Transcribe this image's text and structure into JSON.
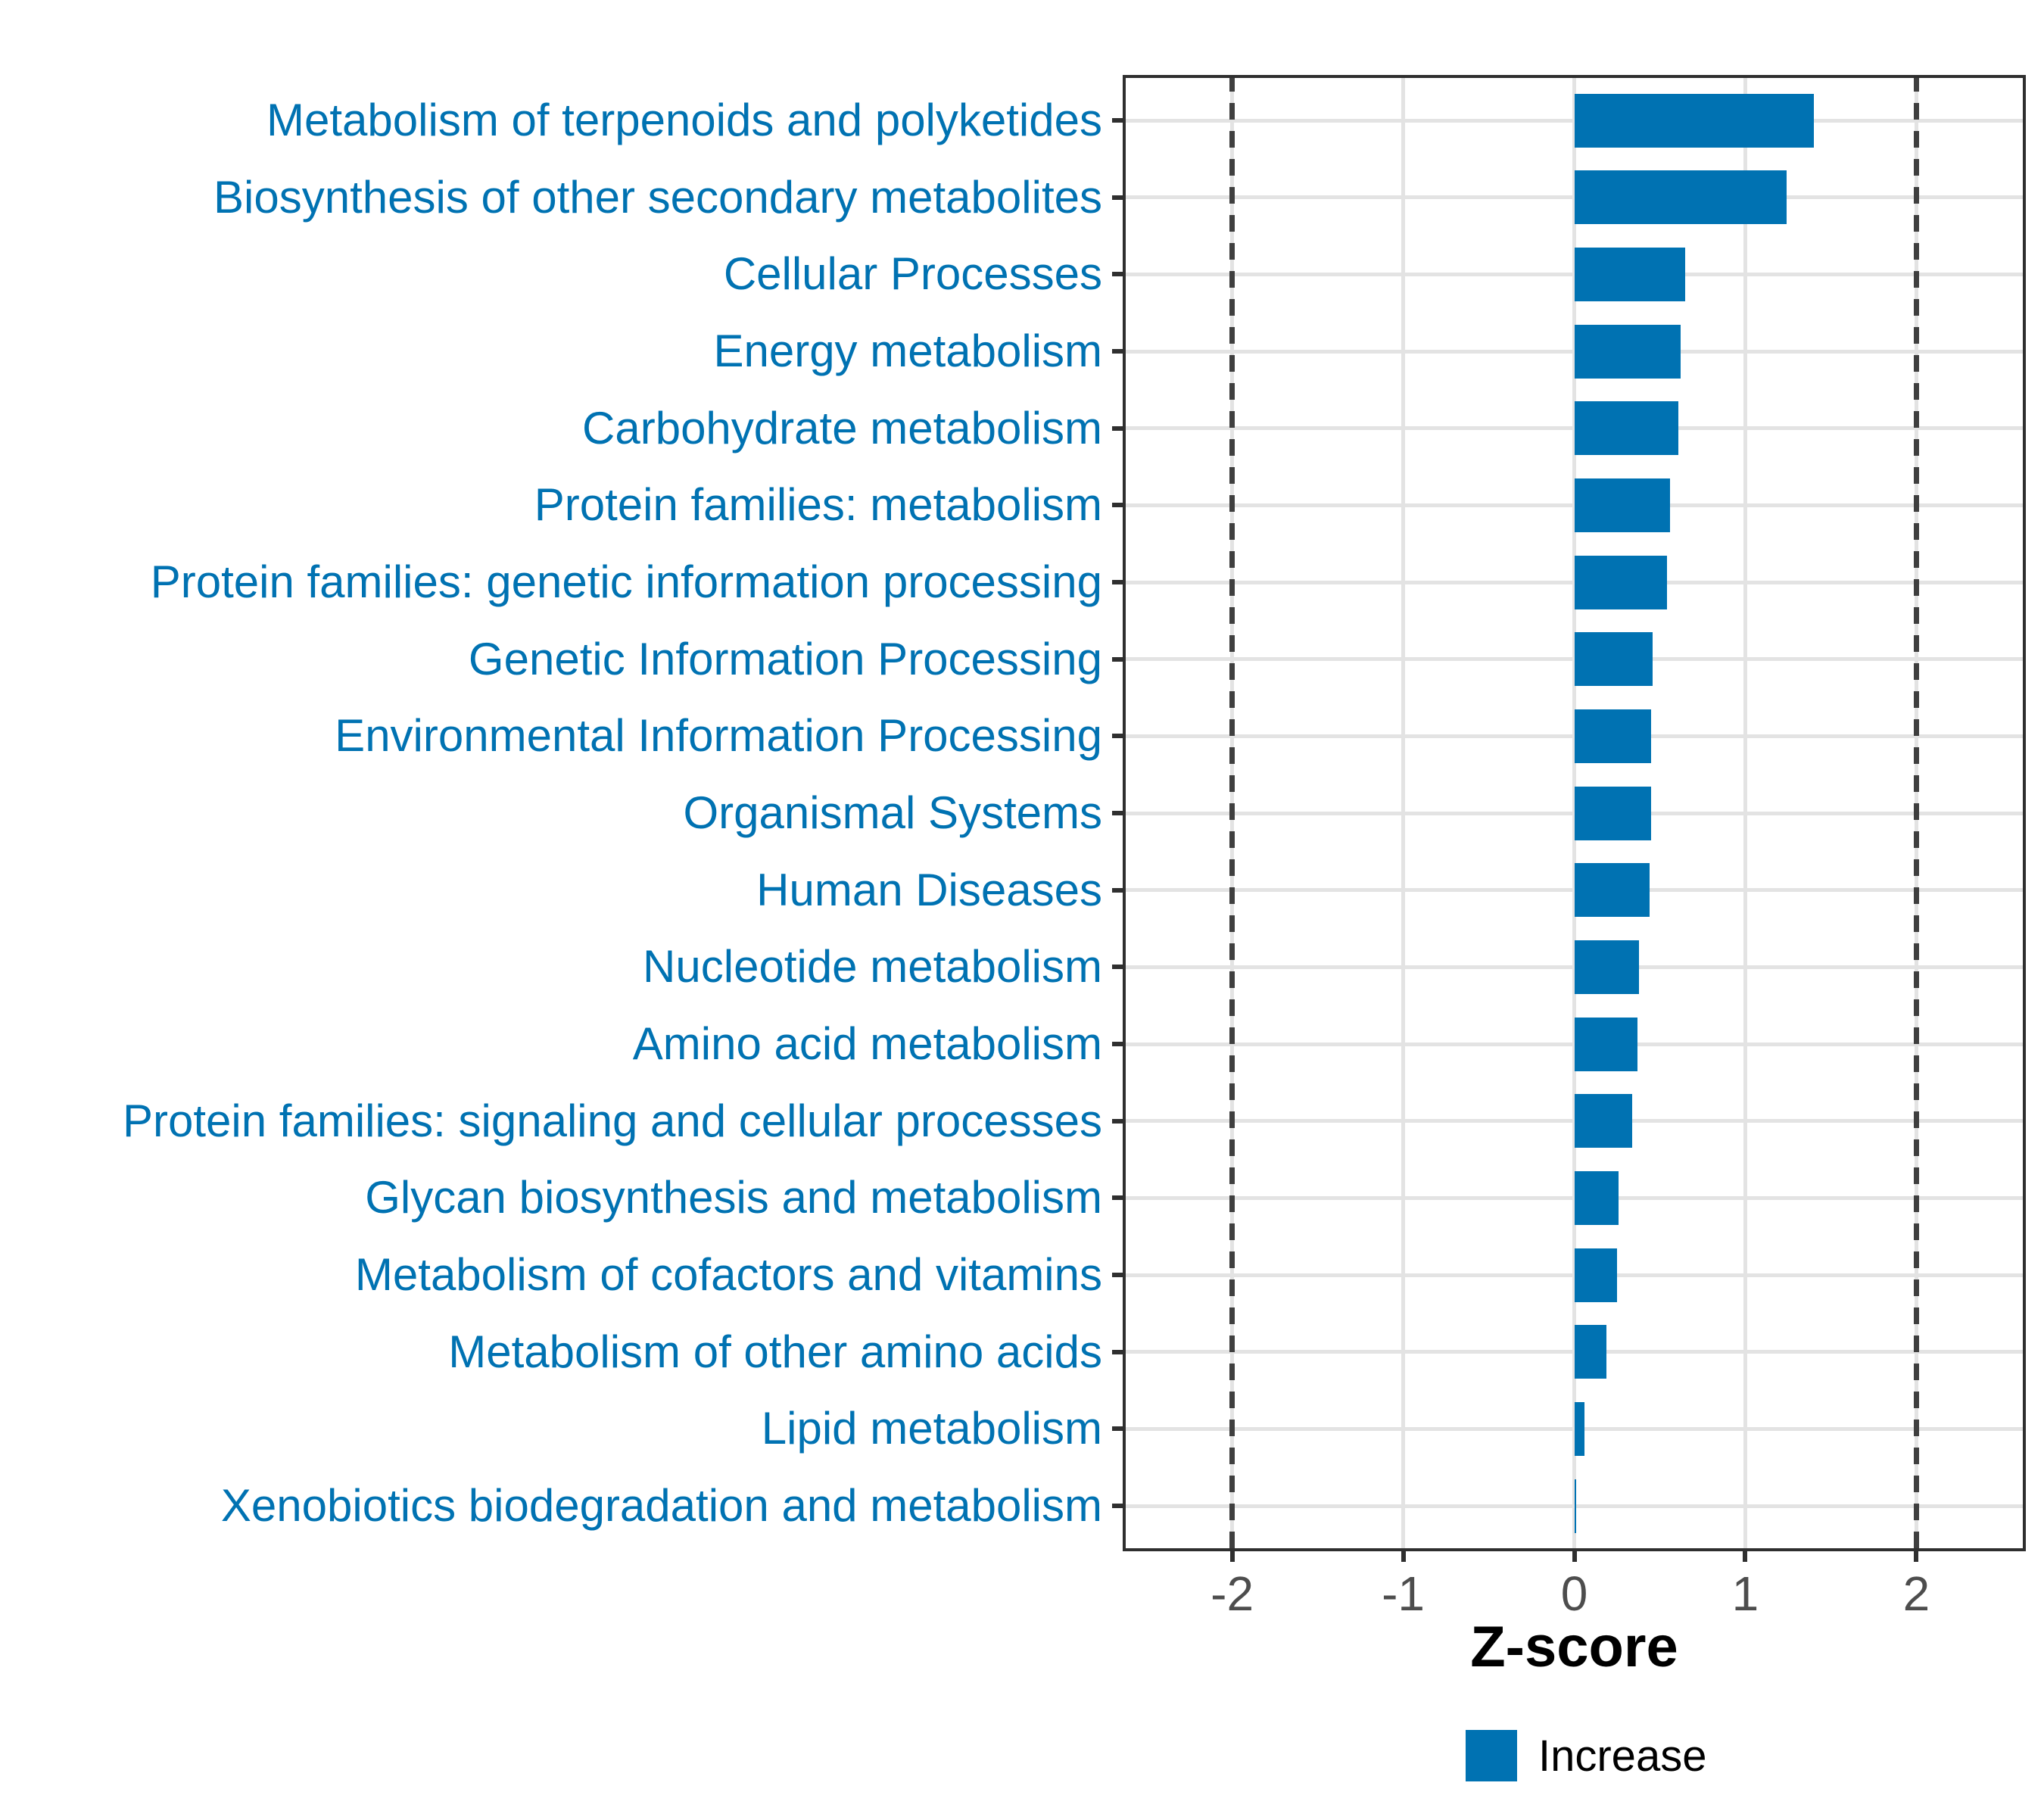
{
  "chart_data": {
    "type": "bar",
    "orientation": "horizontal",
    "title": "",
    "xlabel": "Z-score",
    "ylabel": "",
    "xlim": [
      -2.64,
      2.64
    ],
    "x_ticks": [
      -2,
      -1,
      0,
      1,
      2
    ],
    "x_tick_labels": [
      "-2",
      "-1",
      "0",
      "1",
      "2"
    ],
    "dashed_reference_lines": [
      -2,
      2
    ],
    "grid": "major",
    "legend_position": "bottom",
    "categories": [
      "Metabolism of terpenoids and polyketides",
      "Biosynthesis of other secondary metabolites",
      "Cellular Processes",
      "Energy metabolism",
      "Carbohydrate metabolism",
      "Protein families: metabolism",
      "Protein families: genetic information processing",
      "Genetic Information Processing",
      "Environmental Information Processing",
      "Organismal Systems",
      "Human Diseases",
      "Nucleotide metabolism",
      "Amino acid metabolism",
      "Protein families: signaling and cellular processes",
      "Glycan biosynthesis and metabolism",
      "Metabolism of cofactors and vitamins",
      "Metabolism of other amino acids",
      "Lipid metabolism",
      "Xenobiotics biodegradation and metabolism"
    ],
    "series": [
      {
        "name": "Increase",
        "color": "#0072B2",
        "values": [
          1.4,
          1.24,
          0.65,
          0.62,
          0.61,
          0.56,
          0.54,
          0.46,
          0.45,
          0.45,
          0.44,
          0.38,
          0.37,
          0.34,
          0.26,
          0.25,
          0.19,
          0.06,
          0.01
        ]
      }
    ]
  },
  "legend": {
    "items": [
      {
        "label": "Increase",
        "color": "#0072B2"
      }
    ]
  },
  "colors": {
    "bar": "#0072B2",
    "category_label": "#0072B2",
    "tick_label": "#4d4d4d",
    "axis_label": "#000000",
    "panel_border": "#2f2f2f",
    "gridline": "#e3e3e3",
    "dashed_line": "#3f3f3f",
    "background": "#ffffff"
  }
}
